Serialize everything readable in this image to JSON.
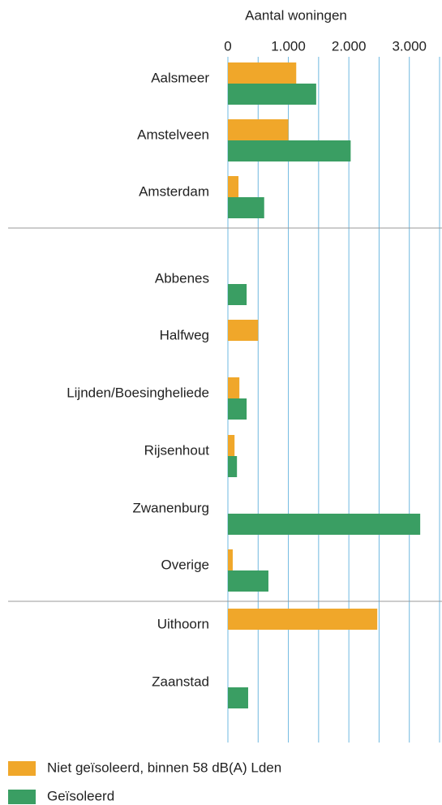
{
  "chart_data": {
    "type": "bar",
    "orientation": "horizontal",
    "x_label": "Aantal woningen",
    "categories": [
      "Aalsmeer",
      "Amstelveen",
      "Amsterdam",
      "Abbenes",
      "Halfweg",
      "Lijnden/Boesingheliede",
      "Rijsenhout",
      "Zwanenburg",
      "Overige",
      "Uithoorn",
      "Zaanstad"
    ],
    "series": [
      {
        "name": "Niet geïsoleerd, binnen 58 dB(A) Lden",
        "color": "#f0a72a",
        "values": [
          1130,
          1000,
          175,
          null,
          500,
          190,
          110,
          null,
          80,
          2470,
          null
        ]
      },
      {
        "name": "Geïsoleerd",
        "color": "#3a9e63",
        "values": [
          1460,
          2030,
          600,
          310,
          null,
          310,
          150,
          3180,
          670,
          null,
          335
        ]
      }
    ],
    "xlim": [
      0,
      3500
    ],
    "xticks": [
      0,
      {
        "value": 1000,
        "label": "1.000"
      },
      {
        "value": 2000,
        "label": "2.000"
      },
      {
        "value": 3000,
        "label": "3.000"
      }
    ],
    "xgrid": [
      0,
      500,
      1000,
      1500,
      2000,
      2500,
      3000,
      3500
    ],
    "grid": true,
    "legend": "bottom-left"
  }
}
